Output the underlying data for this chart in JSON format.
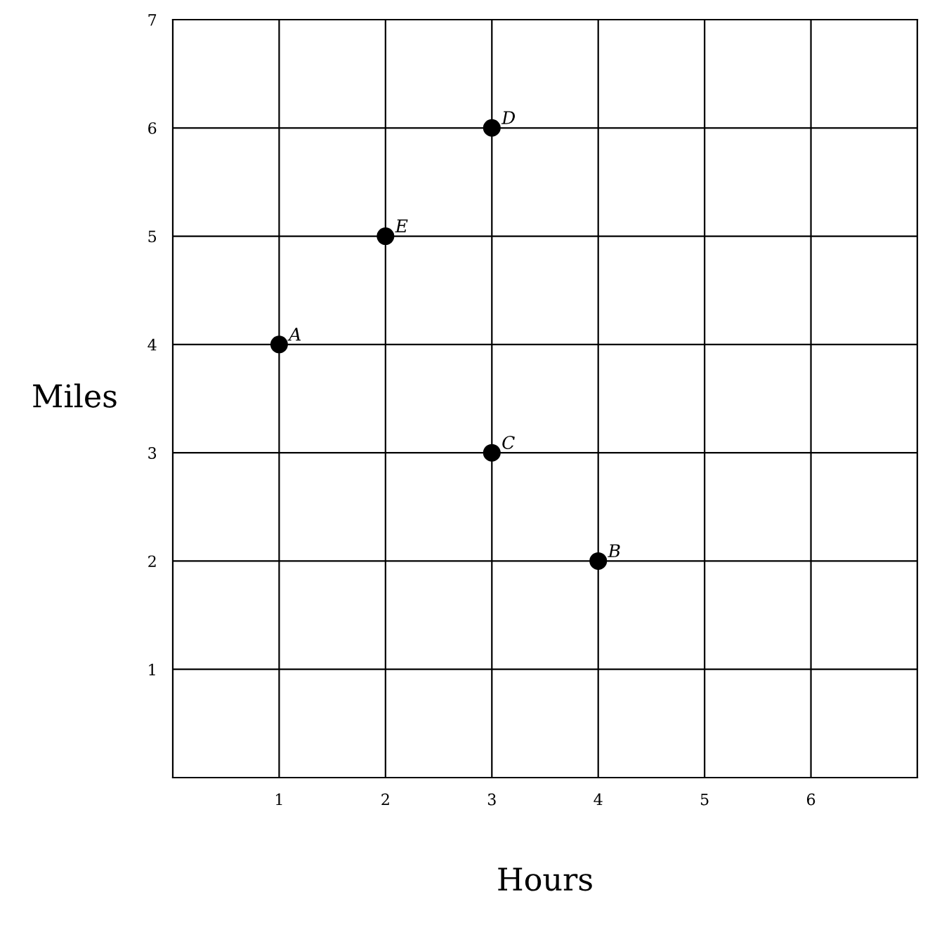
{
  "chart_data": {
    "type": "scatter",
    "xlabel": "Hours",
    "ylabel": "Miles",
    "x": [
      1,
      4,
      3,
      3,
      2
    ],
    "values": [
      4,
      2,
      3,
      6,
      5
    ],
    "color": "#000000",
    "marker": "circle",
    "xlim": [
      0,
      7
    ],
    "ylim": [
      0,
      7
    ],
    "xticks": [
      1,
      2,
      3,
      4,
      5,
      6
    ],
    "yticks": [
      1,
      2,
      3,
      4,
      5,
      6,
      7
    ],
    "grid": true,
    "annotations": [
      {
        "text": "A",
        "x": 1,
        "y": 4
      },
      {
        "text": "B",
        "x": 4,
        "y": 2
      },
      {
        "text": "C",
        "x": 3,
        "y": 3
      },
      {
        "text": "D",
        "x": 3,
        "y": 6
      },
      {
        "text": "E",
        "x": 2,
        "y": 5
      }
    ]
  }
}
